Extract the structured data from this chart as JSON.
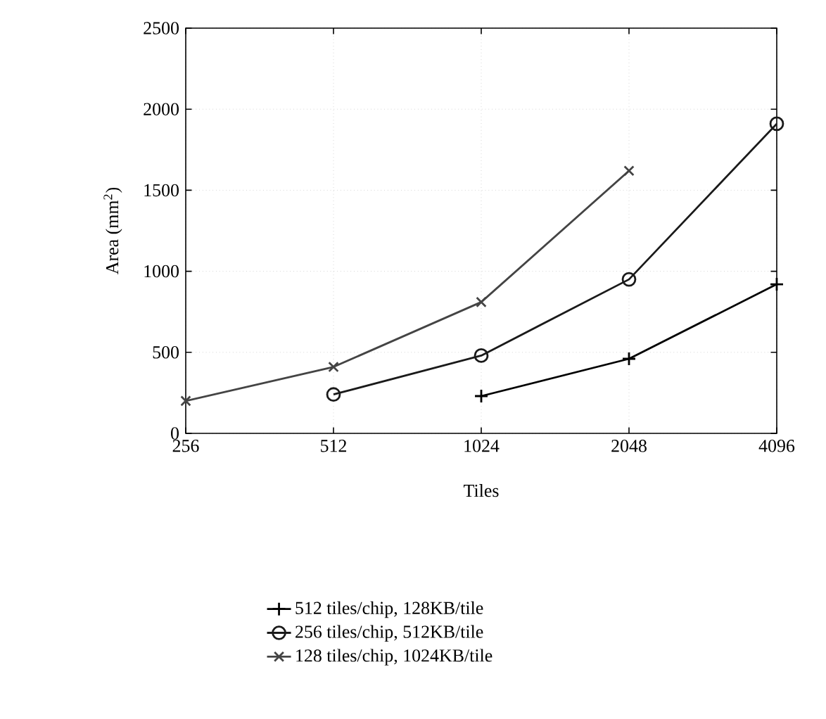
{
  "chart_data": {
    "type": "line",
    "xlabel": "Tiles",
    "ylabel": "Area (mm$^{2}$)",
    "categories": [
      "256",
      "512",
      "1024",
      "2048",
      "4096"
    ],
    "ylim": [
      0,
      2500
    ],
    "yticks": [
      0,
      500,
      1000,
      1500,
      2000,
      2500
    ],
    "grid": true,
    "legend": "bottom",
    "line_style": "solid",
    "series": [
      {
        "name": "512 tiles/chip, 128KB/tile",
        "color": "#000000",
        "marker": "plus",
        "values": [
          null,
          null,
          230,
          460,
          920
        ]
      },
      {
        "name": "256 tiles/chip, 512KB/tile",
        "color": "#1a1a1a",
        "marker": "circle",
        "values": [
          null,
          240,
          480,
          950,
          1910
        ]
      },
      {
        "name": "128 tiles/chip, 1024KB/tile",
        "color": "#444444",
        "marker": "cross",
        "values": [
          200,
          410,
          810,
          1620,
          null
        ]
      }
    ]
  }
}
